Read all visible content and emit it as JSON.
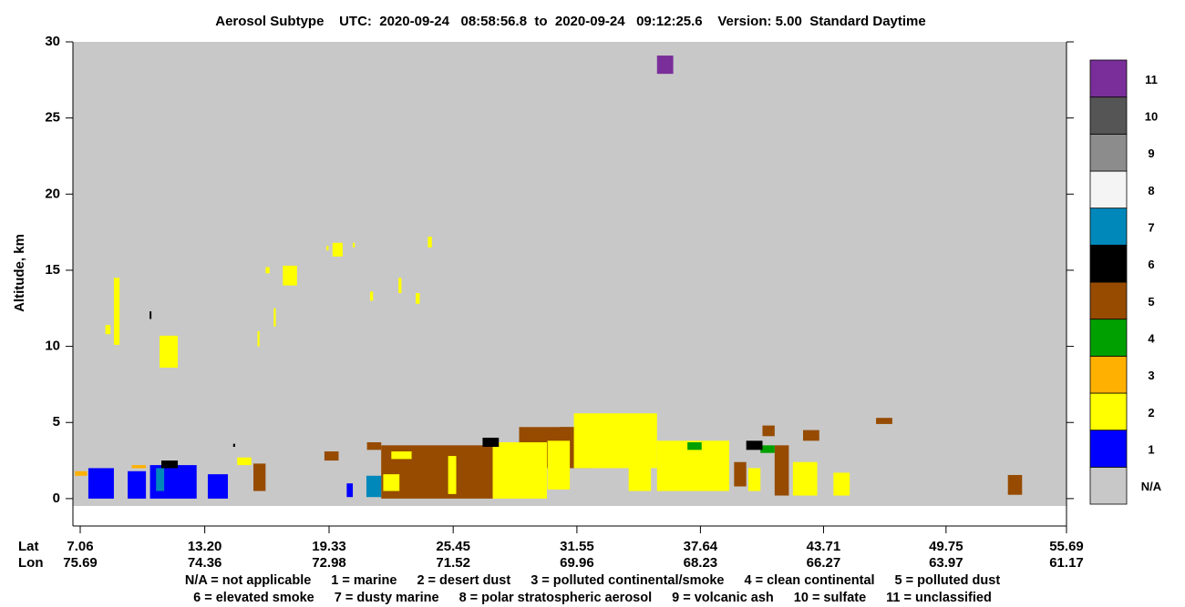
{
  "chart_data": {
    "type": "curtain",
    "title": "Aerosol Subtype    UTC:  2020-09-24   08:58:56.8  to  2020-09-24   09:12:25.6    Version: 5.00  Standard Daytime",
    "y_label": "Altitude, km",
    "ylim": [
      -1.8,
      30
    ],
    "yticks": [
      0,
      5,
      10,
      15,
      20,
      25,
      30
    ],
    "xlim": [
      6.7,
      55.69
    ],
    "x_row_labels": [
      "Lat",
      "Lon"
    ],
    "xticks": [
      7.06,
      {
        "value": 13.2,
        "label": "13.20"
      },
      19.33,
      25.45,
      31.55,
      37.64,
      43.71,
      49.75,
      55.69
    ],
    "lon_labels": [
      "75.69",
      "74.36",
      "72.98",
      "71.52",
      "69.96",
      "68.23",
      "66.27",
      "63.97",
      "61.17"
    ],
    "colorbar": [
      {
        "label": "N/A",
        "color": "#c8c8c8"
      },
      {
        "label": "1",
        "color": "#0000ff"
      },
      {
        "label": "2",
        "color": "#ffff00"
      },
      {
        "label": "3",
        "color": "#ffb000"
      },
      {
        "label": "4",
        "color": "#00a000"
      },
      {
        "label": "5",
        "color": "#964b00"
      },
      {
        "label": "6",
        "color": "#000000"
      },
      {
        "label": "7",
        "color": "#0088bb"
      },
      {
        "label": "8",
        "color": "#f4f4f4"
      },
      {
        "label": "9",
        "color": "#8c8c8c"
      },
      {
        "label": "10",
        "color": "#555555"
      },
      {
        "label": "11",
        "color": "#7a2e9a"
      }
    ],
    "features": [
      {
        "lat": [
          21.9,
          27.4
        ],
        "alt": [
          0,
          3.5
        ],
        "subtype": 5
      },
      {
        "lat": [
          28.7,
          32.3
        ],
        "alt": [
          2,
          4.7
        ],
        "subtype": 5
      },
      {
        "lat": [
          30.7,
          33.5
        ],
        "alt": [
          3.5,
          4.7
        ],
        "subtype": 5
      },
      {
        "lat": [
          22.0,
          22.8
        ],
        "alt": [
          0.5,
          1.6
        ],
        "subtype": 2
      },
      {
        "lat": [
          25.2,
          25.6
        ],
        "alt": [
          0.3,
          2.8
        ],
        "subtype": 2
      },
      {
        "lat": [
          27.4,
          30.07
        ],
        "alt": [
          0,
          3.7
        ],
        "subtype": 2
      },
      {
        "lat": [
          30.1,
          31.2
        ],
        "alt": [
          0.6,
          3.8
        ],
        "subtype": 2
      },
      {
        "lat": [
          31.4,
          35.5
        ],
        "alt": [
          2,
          5.6
        ],
        "subtype": 2
      },
      {
        "lat": [
          34.1,
          35.2
        ],
        "alt": [
          0.5,
          4
        ],
        "subtype": 2
      },
      {
        "lat": [
          35.5,
          39.06
        ],
        "alt": [
          0.5,
          3.8
        ],
        "subtype": 2
      },
      {
        "lat": [
          40,
          40.6
        ],
        "alt": [
          0.5,
          2
        ],
        "subtype": 2
      },
      {
        "lat": [
          42.2,
          43.4
        ],
        "alt": [
          0.2,
          2.4
        ],
        "subtype": 2
      },
      {
        "lat": [
          44.2,
          45
        ],
        "alt": [
          0.2,
          1.7
        ],
        "subtype": 2
      },
      {
        "lat": [
          22.4,
          23.4
        ],
        "alt": [
          2.6,
          3.1
        ],
        "subtype": 2
      },
      {
        "lat": [
          14.8,
          15.5
        ],
        "alt": [
          2.2,
          2.7
        ],
        "subtype": 2
      },
      {
        "lat": [
          8.72,
          9.0
        ],
        "alt": [
          10.1,
          14.5
        ],
        "subtype": 2
      },
      {
        "lat": [
          10.97,
          11.87
        ],
        "alt": [
          8.6,
          10.7
        ],
        "subtype": 2
      },
      {
        "lat": [
          8.3,
          8.55
        ],
        "alt": [
          10.8,
          11.4
        ],
        "subtype": 2
      },
      {
        "lat": [
          19.5,
          20
        ],
        "alt": [
          15.9,
          16.8
        ],
        "subtype": 2
      },
      {
        "lat": [
          19.2,
          19.3
        ],
        "alt": [
          16.3,
          16.6
        ],
        "subtype": 2
      },
      {
        "lat": [
          20.5,
          20.6
        ],
        "alt": [
          16.5,
          16.8
        ],
        "subtype": 2
      },
      {
        "lat": [
          24.2,
          24.4
        ],
        "alt": [
          16.5,
          17.2
        ],
        "subtype": 2
      },
      {
        "lat": [
          22.75,
          22.9
        ],
        "alt": [
          13.5,
          14.5
        ],
        "subtype": 2
      },
      {
        "lat": [
          17.05,
          17.75
        ],
        "alt": [
          14,
          15.3
        ],
        "subtype": 2
      },
      {
        "lat": [
          16.2,
          16.4
        ],
        "alt": [
          14.8,
          15.2
        ],
        "subtype": 2
      },
      {
        "lat": [
          16.6,
          16.7
        ],
        "alt": [
          11.3,
          12.5
        ],
        "subtype": 2
      },
      {
        "lat": [
          15.8,
          15.9
        ],
        "alt": [
          10,
          11
        ],
        "subtype": 2
      },
      {
        "lat": [
          21.35,
          21.5
        ],
        "alt": [
          13,
          13.6
        ],
        "subtype": 2
      },
      {
        "lat": [
          23.6,
          23.8
        ],
        "alt": [
          12.8,
          13.5
        ],
        "subtype": 2
      },
      {
        "lat": [
          21.2,
          21.9
        ],
        "alt": [
          3.2,
          3.7
        ],
        "subtype": 5
      },
      {
        "lat": [
          41.3,
          42
        ],
        "alt": [
          0.2,
          3.5
        ],
        "subtype": 5
      },
      {
        "lat": [
          42.7,
          43.5
        ],
        "alt": [
          3.8,
          4.5
        ],
        "subtype": 5
      },
      {
        "lat": [
          40.7,
          41.3
        ],
        "alt": [
          4.1,
          4.8
        ],
        "subtype": 5
      },
      {
        "lat": [
          46.3,
          47.1
        ],
        "alt": [
          4.9,
          5.3
        ],
        "subtype": 5
      },
      {
        "lat": [
          52.8,
          53.5
        ],
        "alt": [
          0.25,
          1.55
        ],
        "subtype": 5
      },
      {
        "lat": [
          39.3,
          39.9
        ],
        "alt": [
          0.8,
          2.4
        ],
        "subtype": 5
      },
      {
        "lat": [
          19.1,
          19.8
        ],
        "alt": [
          2.5,
          3.1
        ],
        "subtype": 5
      },
      {
        "lat": [
          15.6,
          16.2
        ],
        "alt": [
          0.5,
          2.3
        ],
        "subtype": 5
      },
      {
        "lat": [
          37.0,
          37.7
        ],
        "alt": [
          3.2,
          3.7
        ],
        "subtype": 4
      },
      {
        "lat": [
          40.6,
          41.3
        ],
        "alt": [
          3,
          3.5
        ],
        "subtype": 4
      },
      {
        "lat": [
          26.9,
          27.7
        ],
        "alt": [
          3.4,
          4.0
        ],
        "subtype": 6
      },
      {
        "lat": [
          39.9,
          40.7
        ],
        "alt": [
          3.2,
          3.8
        ],
        "subtype": 6
      },
      {
        "lat": [
          7.46,
          8.72
        ],
        "alt": [
          0,
          2.0
        ],
        "subtype": 1
      },
      {
        "lat": [
          9.4,
          10.3
        ],
        "alt": [
          0,
          1.8
        ],
        "subtype": 1
      },
      {
        "lat": [
          10.5,
          12.8
        ],
        "alt": [
          0,
          2.2
        ],
        "subtype": 1
      },
      {
        "lat": [
          13.35,
          14.34
        ],
        "alt": [
          0,
          1.6
        ],
        "subtype": 1
      },
      {
        "lat": [
          20.2,
          20.5
        ],
        "alt": [
          0.1,
          1.0
        ],
        "subtype": 1
      },
      {
        "lat": [
          10.8,
          11.2
        ],
        "alt": [
          0.5,
          2.0
        ],
        "subtype": 7
      },
      {
        "lat": [
          21.17,
          21.9
        ],
        "alt": [
          0.1,
          1.5
        ],
        "subtype": 7
      },
      {
        "lat": [
          6.8,
          7.4
        ],
        "alt": [
          1.5,
          1.8
        ],
        "subtype": 3
      },
      {
        "lat": [
          9.6,
          10.3
        ],
        "alt": [
          2.0,
          2.2
        ],
        "subtype": 3
      },
      {
        "lat": [
          11.06,
          11.87
        ],
        "alt": [
          2.0,
          2.5
        ],
        "subtype": 6
      },
      {
        "lat": [
          10.48,
          10.57
        ],
        "alt": [
          11.8,
          12.3
        ],
        "subtype": 6
      },
      {
        "lat": [
          14.6,
          14.7
        ],
        "alt": [
          3.4,
          3.6
        ],
        "subtype": 6
      },
      {
        "lat": [
          35.5,
          36.3
        ],
        "alt": [
          27.9,
          29.1
        ],
        "subtype": 11
      }
    ],
    "legend": [
      [
        "N/A = not applicable",
        "1 = marine",
        "2 = desert dust",
        "3 = polluted continental/smoke",
        "4 = clean continental",
        "5 = polluted dust"
      ],
      [
        "6 = elevated smoke",
        "7 = dusty marine",
        "8 = polar stratospheric aerosol",
        "9 = volcanic ash",
        "10 = sulfate",
        "11 = unclassified"
      ]
    ]
  }
}
